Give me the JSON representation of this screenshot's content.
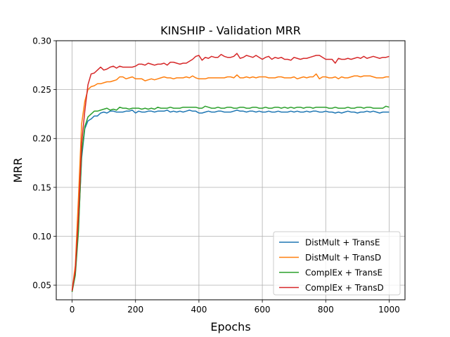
{
  "chart_data": {
    "type": "line",
    "title": "KINSHIP - Validation MRR",
    "xlabel": "Epochs",
    "ylabel": "MRR",
    "xlim": [
      -50,
      1050
    ],
    "ylim": [
      0.035,
      0.3
    ],
    "xticks": [
      0,
      200,
      400,
      600,
      800,
      1000
    ],
    "yticks": [
      0.05,
      0.1,
      0.15,
      0.2,
      0.25,
      0.3
    ],
    "xtick_labels": [
      "0",
      "200",
      "400",
      "600",
      "800",
      "1000"
    ],
    "ytick_labels": [
      "0.05",
      "0.10",
      "0.15",
      "0.20",
      "0.25",
      "0.30"
    ],
    "grid": true,
    "legend_position": "lower-right",
    "x": [
      0,
      10,
      20,
      30,
      40,
      50,
      60,
      70,
      80,
      90,
      100,
      110,
      120,
      130,
      140,
      150,
      160,
      170,
      180,
      190,
      200,
      210,
      220,
      230,
      240,
      250,
      260,
      270,
      280,
      290,
      300,
      310,
      320,
      330,
      340,
      350,
      360,
      370,
      380,
      390,
      400,
      410,
      420,
      430,
      440,
      450,
      460,
      470,
      480,
      490,
      500,
      510,
      520,
      530,
      540,
      550,
      560,
      570,
      580,
      590,
      600,
      610,
      620,
      630,
      640,
      650,
      660,
      670,
      680,
      690,
      700,
      710,
      720,
      730,
      740,
      750,
      760,
      770,
      780,
      790,
      800,
      810,
      820,
      830,
      840,
      850,
      860,
      870,
      880,
      890,
      900,
      910,
      920,
      930,
      940,
      950,
      960,
      970,
      980,
      990,
      1000
    ],
    "series": [
      {
        "name": "DistMult + TransE",
        "color": "#1f77b4",
        "values": [
          0.044,
          0.062,
          0.11,
          0.18,
          0.21,
          0.218,
          0.22,
          0.223,
          0.223,
          0.226,
          0.227,
          0.226,
          0.228,
          0.228,
          0.227,
          0.227,
          0.227,
          0.228,
          0.228,
          0.229,
          0.226,
          0.228,
          0.227,
          0.227,
          0.228,
          0.228,
          0.227,
          0.228,
          0.228,
          0.228,
          0.229,
          0.227,
          0.228,
          0.227,
          0.228,
          0.227,
          0.228,
          0.229,
          0.228,
          0.228,
          0.226,
          0.226,
          0.227,
          0.228,
          0.227,
          0.227,
          0.228,
          0.228,
          0.227,
          0.227,
          0.227,
          0.228,
          0.229,
          0.228,
          0.228,
          0.227,
          0.228,
          0.228,
          0.227,
          0.228,
          0.227,
          0.227,
          0.228,
          0.227,
          0.227,
          0.228,
          0.227,
          0.227,
          0.227,
          0.228,
          0.227,
          0.228,
          0.227,
          0.227,
          0.228,
          0.227,
          0.228,
          0.228,
          0.227,
          0.227,
          0.228,
          0.227,
          0.227,
          0.226,
          0.227,
          0.226,
          0.227,
          0.228,
          0.227,
          0.227,
          0.226,
          0.227,
          0.227,
          0.228,
          0.227,
          0.228,
          0.227,
          0.226,
          0.227,
          0.227,
          0.227
        ]
      },
      {
        "name": "DistMult + TransD",
        "color": "#ff7f0e",
        "values": [
          0.045,
          0.07,
          0.14,
          0.215,
          0.238,
          0.25,
          0.253,
          0.254,
          0.256,
          0.256,
          0.257,
          0.258,
          0.258,
          0.259,
          0.26,
          0.263,
          0.263,
          0.261,
          0.262,
          0.263,
          0.261,
          0.261,
          0.261,
          0.259,
          0.26,
          0.261,
          0.26,
          0.261,
          0.262,
          0.263,
          0.262,
          0.262,
          0.261,
          0.262,
          0.262,
          0.262,
          0.263,
          0.262,
          0.264,
          0.262,
          0.261,
          0.261,
          0.261,
          0.262,
          0.262,
          0.262,
          0.262,
          0.262,
          0.262,
          0.263,
          0.263,
          0.262,
          0.265,
          0.262,
          0.262,
          0.263,
          0.262,
          0.263,
          0.262,
          0.263,
          0.263,
          0.263,
          0.262,
          0.262,
          0.262,
          0.263,
          0.263,
          0.262,
          0.262,
          0.262,
          0.263,
          0.261,
          0.262,
          0.263,
          0.262,
          0.263,
          0.263,
          0.266,
          0.261,
          0.263,
          0.263,
          0.262,
          0.262,
          0.263,
          0.261,
          0.263,
          0.262,
          0.262,
          0.263,
          0.264,
          0.264,
          0.263,
          0.264,
          0.264,
          0.264,
          0.263,
          0.262,
          0.262,
          0.262,
          0.263,
          0.263
        ]
      },
      {
        "name": "ComplEx + TransE",
        "color": "#2ca02c",
        "values": [
          0.043,
          0.06,
          0.105,
          0.185,
          0.212,
          0.222,
          0.225,
          0.228,
          0.228,
          0.229,
          0.23,
          0.231,
          0.229,
          0.23,
          0.229,
          0.232,
          0.231,
          0.231,
          0.23,
          0.231,
          0.231,
          0.231,
          0.23,
          0.231,
          0.23,
          0.231,
          0.23,
          0.232,
          0.231,
          0.231,
          0.231,
          0.232,
          0.231,
          0.231,
          0.231,
          0.232,
          0.232,
          0.232,
          0.232,
          0.232,
          0.231,
          0.231,
          0.233,
          0.232,
          0.231,
          0.231,
          0.232,
          0.231,
          0.231,
          0.232,
          0.232,
          0.231,
          0.231,
          0.232,
          0.232,
          0.231,
          0.231,
          0.232,
          0.232,
          0.231,
          0.231,
          0.232,
          0.231,
          0.231,
          0.232,
          0.232,
          0.231,
          0.232,
          0.231,
          0.232,
          0.231,
          0.232,
          0.232,
          0.231,
          0.232,
          0.232,
          0.231,
          0.232,
          0.232,
          0.232,
          0.232,
          0.231,
          0.231,
          0.232,
          0.231,
          0.231,
          0.231,
          0.232,
          0.231,
          0.231,
          0.232,
          0.232,
          0.231,
          0.232,
          0.232,
          0.231,
          0.231,
          0.231,
          0.231,
          0.233,
          0.232
        ]
      },
      {
        "name": "ComplEx + TransD",
        "color": "#d62728",
        "values": [
          0.044,
          0.065,
          0.12,
          0.195,
          0.228,
          0.255,
          0.266,
          0.267,
          0.27,
          0.273,
          0.27,
          0.271,
          0.273,
          0.274,
          0.272,
          0.274,
          0.273,
          0.273,
          0.273,
          0.273,
          0.274,
          0.276,
          0.276,
          0.275,
          0.277,
          0.276,
          0.275,
          0.276,
          0.276,
          0.277,
          0.275,
          0.278,
          0.278,
          0.277,
          0.276,
          0.277,
          0.277,
          0.279,
          0.281,
          0.284,
          0.285,
          0.28,
          0.283,
          0.282,
          0.284,
          0.283,
          0.283,
          0.286,
          0.284,
          0.283,
          0.283,
          0.284,
          0.287,
          0.282,
          0.283,
          0.285,
          0.284,
          0.283,
          0.285,
          0.283,
          0.281,
          0.283,
          0.284,
          0.281,
          0.283,
          0.282,
          0.283,
          0.281,
          0.281,
          0.28,
          0.283,
          0.282,
          0.281,
          0.282,
          0.282,
          0.283,
          0.284,
          0.285,
          0.285,
          0.283,
          0.281,
          0.281,
          0.281,
          0.277,
          0.282,
          0.281,
          0.281,
          0.282,
          0.281,
          0.282,
          0.283,
          0.282,
          0.284,
          0.282,
          0.283,
          0.284,
          0.283,
          0.282,
          0.283,
          0.283,
          0.284
        ]
      }
    ]
  }
}
